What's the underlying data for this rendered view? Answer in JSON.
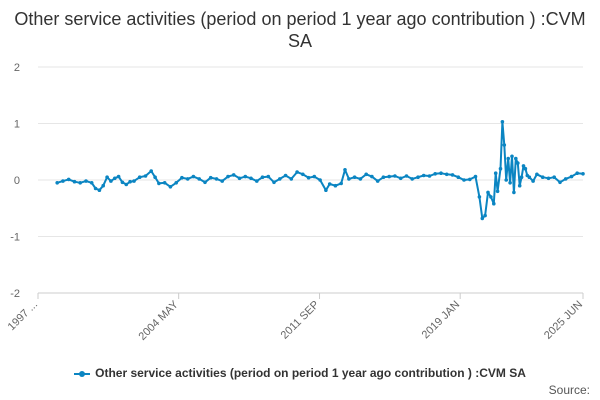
{
  "chart_data": {
    "type": "line",
    "title": "Other service activities (period on period 1 year ago contribution ) :CVM SA",
    "xlabel": "",
    "ylabel": "",
    "ylim": [
      -2,
      2
    ],
    "yticks": [
      2,
      1,
      0,
      -1,
      -2
    ],
    "xrange": [
      1997.0,
      2025.4
    ],
    "xtick_labels": [
      {
        "label": "1997 ...",
        "x": 1997.0
      },
      {
        "label": "2004 MAY",
        "x": 2004.33
      },
      {
        "label": "2011 SEP",
        "x": 2011.67
      },
      {
        "label": "2019 JAN",
        "x": 2019.0
      },
      {
        "label": "2025 JUN",
        "x": 2025.4
      }
    ],
    "series": [
      {
        "name": "Other service activities (period on period 1 year ago contribution ) :CVM SA",
        "color": "#0b85c2",
        "points": [
          [
            1998.0,
            -0.05
          ],
          [
            1998.3,
            -0.02
          ],
          [
            1998.6,
            0.01
          ],
          [
            1998.9,
            -0.03
          ],
          [
            1999.2,
            -0.05
          ],
          [
            1999.5,
            -0.02
          ],
          [
            1999.8,
            -0.05
          ],
          [
            2000.0,
            -0.15
          ],
          [
            2000.2,
            -0.18
          ],
          [
            2000.4,
            -0.1
          ],
          [
            2000.6,
            0.05
          ],
          [
            2000.8,
            -0.02
          ],
          [
            2001.0,
            0.03
          ],
          [
            2001.2,
            0.06
          ],
          [
            2001.4,
            -0.04
          ],
          [
            2001.6,
            -0.08
          ],
          [
            2001.8,
            -0.03
          ],
          [
            2002.0,
            -0.02
          ],
          [
            2002.3,
            0.05
          ],
          [
            2002.6,
            0.07
          ],
          [
            2002.9,
            0.16
          ],
          [
            2003.1,
            0.05
          ],
          [
            2003.3,
            -0.06
          ],
          [
            2003.6,
            -0.05
          ],
          [
            2003.9,
            -0.12
          ],
          [
            2004.2,
            -0.05
          ],
          [
            2004.5,
            0.04
          ],
          [
            2004.8,
            0.02
          ],
          [
            2005.1,
            0.06
          ],
          [
            2005.4,
            0.02
          ],
          [
            2005.7,
            -0.04
          ],
          [
            2006.0,
            0.04
          ],
          [
            2006.3,
            0.02
          ],
          [
            2006.6,
            -0.02
          ],
          [
            2006.9,
            0.06
          ],
          [
            2007.2,
            0.09
          ],
          [
            2007.5,
            0.03
          ],
          [
            2007.8,
            0.06
          ],
          [
            2008.1,
            0.03
          ],
          [
            2008.4,
            -0.02
          ],
          [
            2008.7,
            0.05
          ],
          [
            2009.0,
            0.06
          ],
          [
            2009.3,
            -0.04
          ],
          [
            2009.6,
            0.02
          ],
          [
            2009.9,
            0.08
          ],
          [
            2010.2,
            0.02
          ],
          [
            2010.5,
            0.14
          ],
          [
            2010.8,
            0.1
          ],
          [
            2011.1,
            0.04
          ],
          [
            2011.4,
            0.06
          ],
          [
            2011.7,
            0.0
          ],
          [
            2012.0,
            -0.18
          ],
          [
            2012.2,
            -0.07
          ],
          [
            2012.5,
            -0.1
          ],
          [
            2012.8,
            -0.06
          ],
          [
            2013.0,
            0.18
          ],
          [
            2013.2,
            0.02
          ],
          [
            2013.5,
            0.05
          ],
          [
            2013.8,
            0.02
          ],
          [
            2014.1,
            0.1
          ],
          [
            2014.4,
            0.06
          ],
          [
            2014.7,
            -0.02
          ],
          [
            2015.0,
            0.05
          ],
          [
            2015.3,
            0.06
          ],
          [
            2015.6,
            0.07
          ],
          [
            2015.9,
            0.03
          ],
          [
            2016.2,
            0.07
          ],
          [
            2016.5,
            0.02
          ],
          [
            2016.8,
            0.05
          ],
          [
            2017.1,
            0.08
          ],
          [
            2017.4,
            0.07
          ],
          [
            2017.7,
            0.11
          ],
          [
            2018.0,
            0.12
          ],
          [
            2018.3,
            0.1
          ],
          [
            2018.6,
            0.09
          ],
          [
            2018.9,
            0.05
          ],
          [
            2019.2,
            0.0
          ],
          [
            2019.5,
            0.01
          ],
          [
            2019.8,
            0.06
          ],
          [
            2020.0,
            -0.3
          ],
          [
            2020.15,
            -0.68
          ],
          [
            2020.3,
            -0.63
          ],
          [
            2020.45,
            -0.22
          ],
          [
            2020.6,
            -0.3
          ],
          [
            2020.75,
            -0.42
          ],
          [
            2020.85,
            0.12
          ],
          [
            2020.95,
            -0.2
          ],
          [
            2021.1,
            0.2
          ],
          [
            2021.2,
            1.03
          ],
          [
            2021.3,
            0.62
          ],
          [
            2021.4,
            0.0
          ],
          [
            2021.5,
            0.38
          ],
          [
            2021.6,
            -0.05
          ],
          [
            2021.7,
            0.42
          ],
          [
            2021.8,
            -0.22
          ],
          [
            2021.9,
            0.38
          ],
          [
            2022.0,
            0.3
          ],
          [
            2022.1,
            -0.1
          ],
          [
            2022.2,
            0.05
          ],
          [
            2022.3,
            0.25
          ],
          [
            2022.4,
            0.2
          ],
          [
            2022.5,
            0.08
          ],
          [
            2022.6,
            0.05
          ],
          [
            2022.8,
            -0.02
          ],
          [
            2023.0,
            0.1
          ],
          [
            2023.3,
            0.05
          ],
          [
            2023.6,
            0.03
          ],
          [
            2023.9,
            0.05
          ],
          [
            2024.2,
            -0.04
          ],
          [
            2024.5,
            0.02
          ],
          [
            2024.8,
            0.06
          ],
          [
            2025.1,
            0.12
          ],
          [
            2025.4,
            0.11
          ]
        ]
      }
    ],
    "legend_position": "bottom",
    "grid": "horizontal"
  },
  "source_text": "Source:"
}
